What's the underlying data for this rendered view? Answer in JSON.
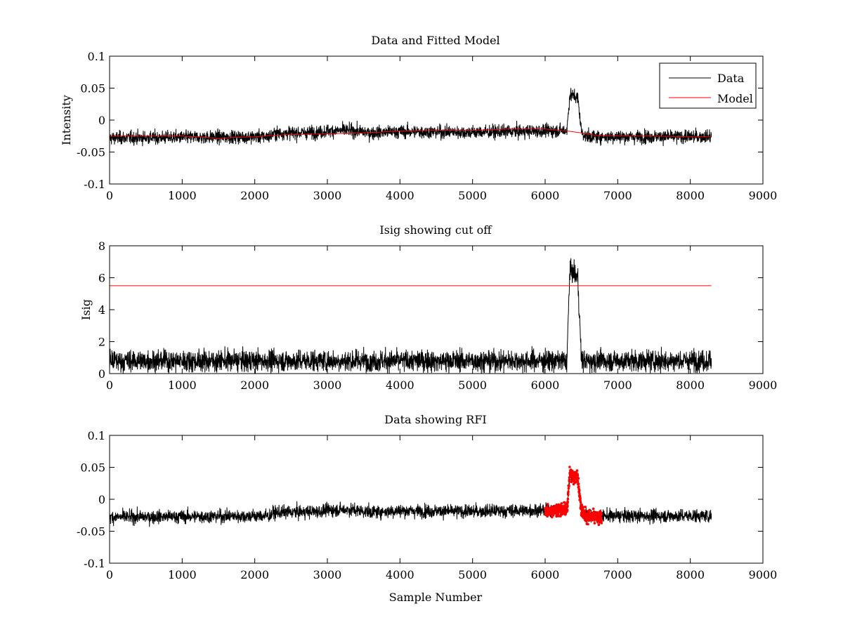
{
  "figure": {
    "background": "#ffffff",
    "trace_color": "#000000",
    "model_color": "#ff0000"
  },
  "chart_data": [
    {
      "type": "line",
      "title": "Data and Fitted Model",
      "xlabel": "",
      "ylabel": "Intensity",
      "xlim": [
        0,
        9000
      ],
      "ylim": [
        -0.1,
        0.1
      ],
      "x_ticks": [
        0,
        1000,
        2000,
        3000,
        4000,
        5000,
        6000,
        7000,
        8000,
        9000
      ],
      "x_tick_labels": [
        "0",
        "1000",
        "2000",
        "3000",
        "4000",
        "5000",
        "6000",
        "7000",
        "8000",
        "9000"
      ],
      "y_ticks": [
        -0.1,
        -0.05,
        0,
        0.05,
        0.1
      ],
      "y_tick_labels": [
        "-0.1",
        "-0.05",
        "0",
        "0.05",
        "0.1"
      ],
      "legend": {
        "placement": "top-right",
        "entries": [
          {
            "name": "Data",
            "color": "#000000"
          },
          {
            "name": "Model",
            "color": "#ff0000"
          }
        ]
      },
      "series": [
        {
          "name": "Data",
          "color": "#000000",
          "style": "noisy-line",
          "x_range": [
            0,
            8290
          ],
          "baseline": [
            [
              0,
              -0.028
            ],
            [
              2200,
              -0.026
            ],
            [
              2260,
              -0.021
            ],
            [
              2900,
              -0.019
            ],
            [
              3000,
              -0.017
            ],
            [
              3300,
              -0.016
            ],
            [
              3600,
              -0.02
            ],
            [
              4000,
              -0.018
            ],
            [
              5000,
              -0.019
            ],
            [
              6000,
              -0.017
            ],
            [
              6300,
              -0.016
            ],
            [
              6340,
              0.04
            ],
            [
              6450,
              0.035
            ],
            [
              6500,
              -0.018
            ],
            [
              6560,
              -0.026
            ],
            [
              8290,
              -0.026
            ]
          ],
          "noise_amplitude": 0.011
        },
        {
          "name": "Model",
          "color": "#ff0000",
          "style": "line",
          "x": [
            0,
            600,
            1000,
            1350,
            1500,
            1700,
            2000,
            2400,
            2800,
            3200,
            3700,
            4000,
            4500,
            5000,
            5500,
            6000,
            6300,
            6500,
            6700,
            7000,
            7500,
            8000,
            8290
          ],
          "y": [
            -0.025,
            -0.025,
            -0.025,
            -0.027,
            -0.029,
            -0.027,
            -0.026,
            -0.023,
            -0.022,
            -0.021,
            -0.019,
            -0.017,
            -0.016,
            -0.016,
            -0.014,
            -0.014,
            -0.017,
            -0.02,
            -0.024,
            -0.025,
            -0.025,
            -0.026,
            -0.026
          ]
        }
      ]
    },
    {
      "type": "line",
      "title": "Isig showing cut off",
      "xlabel": "",
      "ylabel": "Isig",
      "xlim": [
        0,
        9000
      ],
      "ylim": [
        0,
        8
      ],
      "x_ticks": [
        0,
        1000,
        2000,
        3000,
        4000,
        5000,
        6000,
        7000,
        8000,
        9000
      ],
      "x_tick_labels": [
        "0",
        "1000",
        "2000",
        "3000",
        "4000",
        "5000",
        "6000",
        "7000",
        "8000",
        "9000"
      ],
      "y_ticks": [
        0,
        2,
        4,
        6,
        8
      ],
      "y_tick_labels": [
        "0",
        "2",
        "4",
        "6",
        "8"
      ],
      "series": [
        {
          "name": "",
          "color": "#000000",
          "style": "abs-noise",
          "x_range": [
            0,
            8290
          ],
          "level": [
            [
              0,
              0.8
            ],
            [
              6300,
              0.8
            ],
            [
              6340,
              6.5
            ],
            [
              6450,
              6.0
            ],
            [
              6500,
              0.8
            ],
            [
              8290,
              0.8
            ]
          ],
          "noise_amplitude": 1.2
        },
        {
          "name": "",
          "color": "#ff0000",
          "style": "line",
          "x": [
            0,
            8290
          ],
          "y": [
            5.5,
            5.5
          ]
        }
      ]
    },
    {
      "type": "line",
      "title": "Data showing RFI",
      "xlabel": "Sample Number",
      "ylabel": "",
      "xlim": [
        0,
        9000
      ],
      "ylim": [
        -0.1,
        0.1
      ],
      "x_ticks": [
        0,
        1000,
        2000,
        3000,
        4000,
        5000,
        6000,
        7000,
        8000,
        9000
      ],
      "x_tick_labels": [
        "0",
        "1000",
        "2000",
        "3000",
        "4000",
        "5000",
        "6000",
        "7000",
        "8000",
        "9000"
      ],
      "y_ticks": [
        -0.1,
        -0.05,
        0,
        0.05,
        0.1
      ],
      "y_tick_labels": [
        "-0.1",
        "-0.05",
        "0",
        "0.05",
        "0.1"
      ],
      "series": [
        {
          "name": "",
          "color": "#000000",
          "style": "noisy-line",
          "x_range": [
            0,
            8290
          ],
          "baseline": [
            [
              0,
              -0.028
            ],
            [
              2200,
              -0.026
            ],
            [
              2260,
              -0.021
            ],
            [
              2900,
              -0.019
            ],
            [
              3000,
              -0.017
            ],
            [
              3300,
              -0.016
            ],
            [
              3600,
              -0.02
            ],
            [
              4000,
              -0.018
            ],
            [
              5000,
              -0.019
            ],
            [
              6000,
              -0.017
            ],
            [
              6300,
              -0.016
            ],
            [
              6340,
              0.04
            ],
            [
              6450,
              0.035
            ],
            [
              6500,
              -0.018
            ],
            [
              6560,
              -0.026
            ],
            [
              8290,
              -0.026
            ]
          ],
          "noise_amplitude": 0.011
        },
        {
          "name": "",
          "color": "#ff0000",
          "style": "markers",
          "x_range": [
            6000,
            6780
          ],
          "baseline": [
            [
              6000,
              -0.018
            ],
            [
              6300,
              -0.016
            ],
            [
              6340,
              0.04
            ],
            [
              6450,
              0.035
            ],
            [
              6500,
              -0.018
            ],
            [
              6560,
              -0.026
            ],
            [
              6780,
              -0.03
            ]
          ],
          "noise_amplitude": 0.011
        }
      ]
    }
  ]
}
